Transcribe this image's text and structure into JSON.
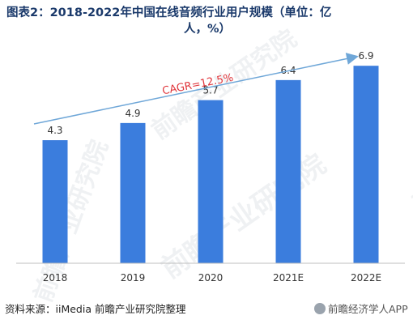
{
  "title_line1": "图表2：2018-2022年中国在线音频行业用户规模（单位：亿",
  "title_line2": "人，%）",
  "source": "资料来源：iiMedia 前瞻产业研究院整理",
  "watermark_text": "前瞻产业研究院",
  "brand": "前瞻经济学人APP",
  "colors": {
    "bar": "#3b7ddd",
    "arrow": "#6fa7d8",
    "cagr": "#e0353b",
    "axis": "#bfbfbf"
  },
  "chart_data": {
    "type": "bar",
    "categories": [
      "2018",
      "2019",
      "2020",
      "2021E",
      "2022E"
    ],
    "values": [
      4.3,
      4.9,
      5.7,
      6.4,
      6.9
    ],
    "value_labels": [
      "4.3",
      "4.9",
      "5.7",
      "6.4",
      "6.9"
    ],
    "ylim": [
      0,
      7.5
    ],
    "annotation": "CAGR=12.5%",
    "grid": false,
    "legend": "none"
  }
}
